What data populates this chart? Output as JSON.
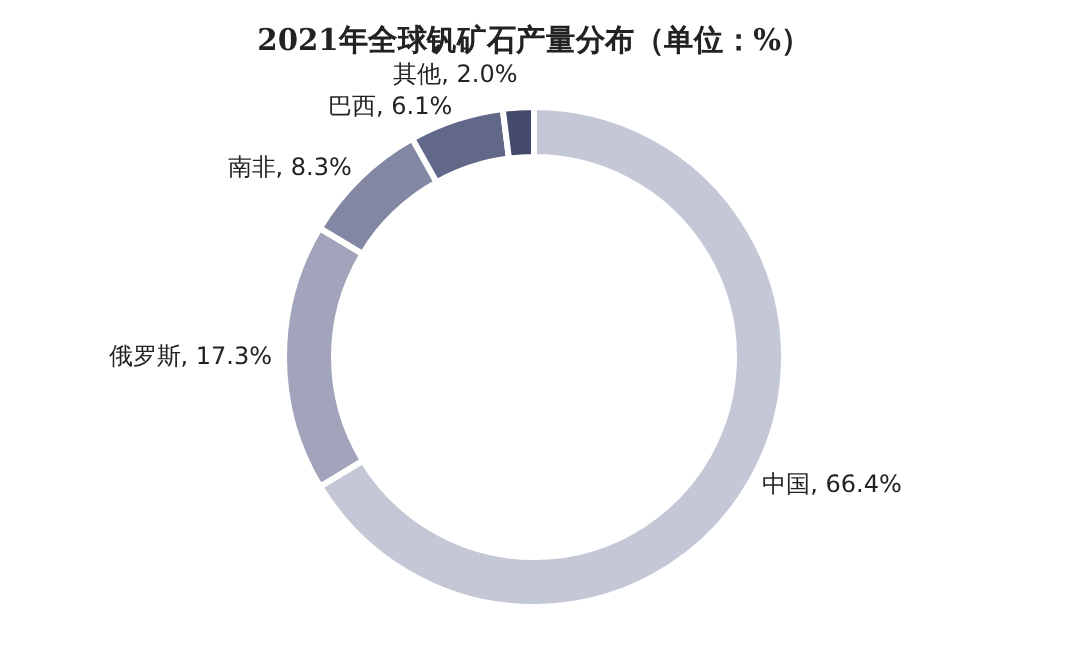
{
  "chart_data": {
    "type": "donut",
    "title": "2021年全球钒矿石产量分布（单位：%）",
    "categories": [
      "中国",
      "俄罗斯",
      "南非",
      "巴西",
      "其他"
    ],
    "values": [
      66.4,
      17.3,
      8.3,
      6.1,
      2.0
    ],
    "value_labels": [
      "66.4%",
      "17.3%",
      "8.3%",
      "6.1%",
      "2.0%"
    ],
    "colors": [
      "#c4c7d5",
      "#a1a4ba",
      "#8287a3",
      "#626887",
      "#454b6b"
    ],
    "legend": false
  }
}
